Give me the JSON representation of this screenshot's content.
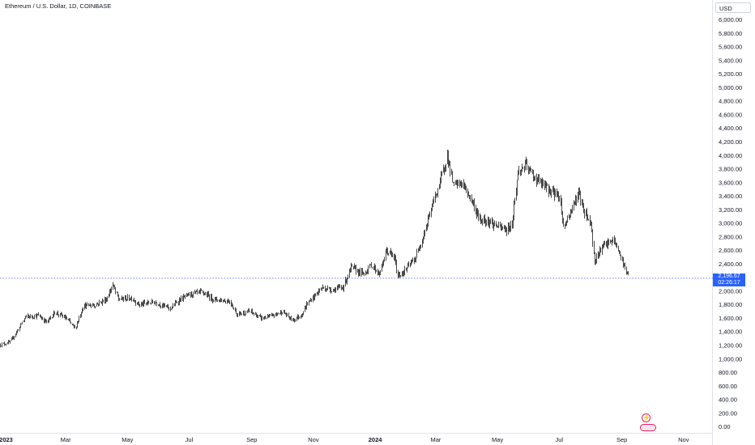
{
  "header": {
    "title": "Ethereum / U.S. Dollar, 1D, COINBASE",
    "currency_button": "USD"
  },
  "price_tag": {
    "price": "2,196.67",
    "countdown": "02:26:17",
    "color": "#2962ff"
  },
  "colors": {
    "candle": "#4a4a4a",
    "price_line": "#2962ff",
    "axis_text": "#131722",
    "icon_red": "#e91e63"
  },
  "icons": [
    "lightning-icon",
    "flag-event-icon"
  ],
  "chart_data": {
    "type": "candlestick",
    "title": "Ethereum / U.S. Dollar, 1D, COINBASE",
    "y_axis": {
      "labels": [
        "6,000.00",
        "5,800.00",
        "5,600.00",
        "5,400.00",
        "5,200.00",
        "5,000.00",
        "4,800.00",
        "4,600.00",
        "4,400.00",
        "4,200.00",
        "4,000.00",
        "3,800.00",
        "3,600.00",
        "3,400.00",
        "3,200.00",
        "3,000.00",
        "2,800.00",
        "2,600.00",
        "2,400.00",
        "2,200.00",
        "2,000.00",
        "1,800.00",
        "1,600.00",
        "1,400.00",
        "1,200.00",
        "1,000.00",
        "800.00",
        "600.00",
        "400.00",
        "200.00",
        "0.00"
      ],
      "range": [
        0,
        6000
      ],
      "scale": "linear"
    },
    "x_axis": {
      "labels": [
        "2023",
        "Mar",
        "May",
        "Jul",
        "Sep",
        "Nov",
        "2024",
        "Mar",
        "May",
        "Jul",
        "Sep",
        "Nov"
      ],
      "label_dates": [
        "2023-01-01",
        "2023-03-01",
        "2023-05-01",
        "2023-07-01",
        "2023-09-01",
        "2023-11-01",
        "2024-01-01",
        "2024-03-01",
        "2024-05-01",
        "2024-07-01",
        "2024-09-01",
        "2024-11-01"
      ],
      "range": [
        "2022-12-26",
        "2024-11-30"
      ]
    },
    "last_price": 2196.67,
    "series": [
      {
        "anchors": [
          [
            "2022-12-26",
            1210
          ],
          [
            "2023-01-05",
            1250
          ],
          [
            "2023-01-12",
            1420
          ],
          [
            "2023-01-20",
            1620
          ],
          [
            "2023-02-02",
            1640
          ],
          [
            "2023-02-10",
            1540
          ],
          [
            "2023-02-18",
            1690
          ],
          [
            "2023-03-01",
            1600
          ],
          [
            "2023-03-10",
            1450
          ],
          [
            "2023-03-18",
            1780
          ],
          [
            "2023-03-30",
            1800
          ],
          [
            "2023-04-10",
            1880
          ],
          [
            "2023-04-16",
            2090
          ],
          [
            "2023-04-22",
            1880
          ],
          [
            "2023-05-05",
            1900
          ],
          [
            "2023-05-12",
            1800
          ],
          [
            "2023-05-28",
            1840
          ],
          [
            "2023-06-12",
            1740
          ],
          [
            "2023-06-21",
            1870
          ],
          [
            "2023-07-03",
            1960
          ],
          [
            "2023-07-14",
            1980
          ],
          [
            "2023-07-25",
            1880
          ],
          [
            "2023-08-10",
            1850
          ],
          [
            "2023-08-17",
            1660
          ],
          [
            "2023-08-30",
            1700
          ],
          [
            "2023-09-10",
            1600
          ],
          [
            "2023-09-20",
            1630
          ],
          [
            "2023-10-01",
            1700
          ],
          [
            "2023-10-11",
            1570
          ],
          [
            "2023-10-20",
            1650
          ],
          [
            "2023-10-25",
            1800
          ],
          [
            "2023-11-09",
            2050
          ],
          [
            "2023-11-20",
            2020
          ],
          [
            "2023-11-30",
            2060
          ],
          [
            "2023-12-08",
            2350
          ],
          [
            "2023-12-20",
            2250
          ],
          [
            "2023-12-28",
            2390
          ],
          [
            "2024-01-05",
            2250
          ],
          [
            "2024-01-12",
            2600
          ],
          [
            "2024-01-20",
            2480
          ],
          [
            "2024-01-23",
            2220
          ],
          [
            "2024-01-30",
            2300
          ],
          [
            "2024-02-10",
            2500
          ],
          [
            "2024-02-20",
            2950
          ],
          [
            "2024-02-28",
            3350
          ],
          [
            "2024-03-05",
            3600
          ],
          [
            "2024-03-12",
            4000
          ],
          [
            "2024-03-18",
            3550
          ],
          [
            "2024-03-26",
            3600
          ],
          [
            "2024-04-05",
            3350
          ],
          [
            "2024-04-13",
            3050
          ],
          [
            "2024-04-20",
            3050
          ],
          [
            "2024-05-01",
            2950
          ],
          [
            "2024-05-10",
            2900
          ],
          [
            "2024-05-15",
            3000
          ],
          [
            "2024-05-21",
            3750
          ],
          [
            "2024-05-28",
            3850
          ],
          [
            "2024-06-08",
            3650
          ],
          [
            "2024-06-20",
            3500
          ],
          [
            "2024-07-01",
            3400
          ],
          [
            "2024-07-05",
            2950
          ],
          [
            "2024-07-10",
            3100
          ],
          [
            "2024-07-20",
            3450
          ],
          [
            "2024-07-25",
            3200
          ],
          [
            "2024-08-01",
            3000
          ],
          [
            "2024-08-05",
            2450
          ],
          [
            "2024-08-12",
            2650
          ],
          [
            "2024-08-24",
            2750
          ],
          [
            "2024-09-01",
            2450
          ],
          [
            "2024-09-06",
            2250
          ],
          [
            "2024-09-07",
            2196.67
          ]
        ]
      }
    ]
  }
}
